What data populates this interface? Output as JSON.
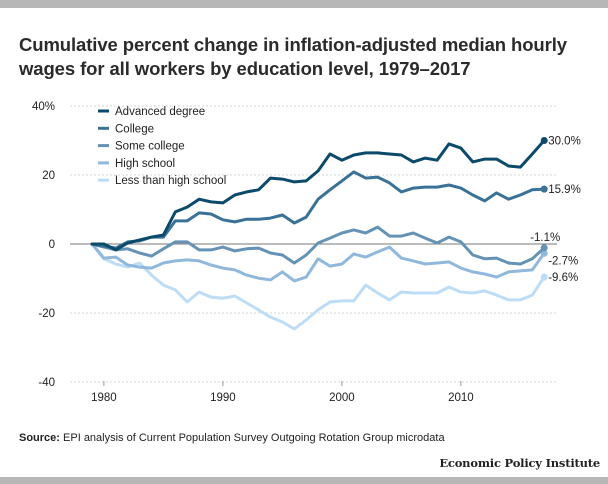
{
  "title": "Cumulative percent change in inflation-adjusted median hourly wages for all workers by education level, 1979–2017",
  "source_label": "Source:",
  "source_text": "EPI analysis of Current Population Survey Outgoing Rotation Group microdata",
  "publisher": "Economic Policy Institute",
  "chart_data": {
    "type": "line",
    "title": "Cumulative percent change in inflation-adjusted median hourly wages for all workers by education level, 1979–2017",
    "xlabel": "",
    "ylabel": "",
    "x": [
      1979,
      1980,
      1981,
      1982,
      1983,
      1984,
      1985,
      1986,
      1987,
      1988,
      1989,
      1990,
      1991,
      1992,
      1993,
      1994,
      1995,
      1996,
      1997,
      1998,
      1999,
      2000,
      2001,
      2002,
      2003,
      2004,
      2005,
      2006,
      2007,
      2008,
      2009,
      2010,
      2011,
      2012,
      2013,
      2014,
      2015,
      2016,
      2017
    ],
    "xlim": [
      1979,
      2017
    ],
    "ylim": [
      -40,
      40
    ],
    "x_ticks": [
      1980,
      1990,
      2000,
      2010
    ],
    "x_tick_labels": [
      "1980",
      "1990",
      "2000",
      "2010"
    ],
    "y_ticks": [
      40,
      20,
      0,
      -20,
      -40
    ],
    "y_tick_labels": [
      "40%",
      "20",
      "0",
      "-20",
      "-40"
    ],
    "grid": "horizontal dotted",
    "legend_position": "top-left",
    "series": [
      {
        "name": "Advanced degree",
        "color": "#0b4a6b",
        "end_label": "30.0%",
        "values": [
          0,
          0,
          -1.7,
          0.3,
          1.2,
          2.0,
          2.6,
          9.3,
          10.7,
          13.0,
          12.2,
          11.9,
          14.2,
          15.1,
          15.7,
          19.1,
          18.8,
          18.0,
          18.3,
          21.2,
          26.1,
          24.3,
          25.8,
          26.4,
          26.4,
          26.1,
          25.8,
          23.8,
          24.9,
          24.3,
          29.0,
          27.8,
          23.8,
          24.6,
          24.6,
          22.6,
          22.3,
          26.1,
          30.0
        ]
      },
      {
        "name": "College",
        "color": "#3a7196",
        "end_label": "15.9%",
        "values": [
          0,
          -0.6,
          -1.2,
          0.6,
          0.9,
          2.0,
          2.0,
          6.7,
          6.7,
          9.0,
          8.7,
          7.0,
          6.4,
          7.2,
          7.2,
          7.5,
          8.4,
          6.1,
          7.8,
          13.0,
          15.7,
          18.3,
          20.9,
          19.1,
          19.4,
          17.7,
          15.1,
          16.2,
          16.5,
          16.5,
          17.1,
          16.2,
          14.2,
          12.5,
          14.8,
          13.0,
          14.2,
          15.7,
          15.9
        ]
      },
      {
        "name": "Some college",
        "color": "#6593b6",
        "end_label": "-1.1%",
        "values": [
          0,
          -0.9,
          -1.7,
          -1.4,
          -2.6,
          -3.5,
          -1.4,
          0.6,
          0.6,
          -1.7,
          -1.7,
          -0.9,
          -2.0,
          -1.4,
          -1.2,
          -2.6,
          -3.2,
          -5.5,
          -3.2,
          0.3,
          1.7,
          3.2,
          4.1,
          3.2,
          4.9,
          2.3,
          2.3,
          3.2,
          1.7,
          0.3,
          2.0,
          0.6,
          -3.2,
          -4.3,
          -4.1,
          -5.5,
          -5.8,
          -4.3,
          -1.1
        ]
      },
      {
        "name": "High school",
        "color": "#90b8dc",
        "end_label": "-2.7%",
        "values": [
          0,
          -4.1,
          -3.8,
          -6.1,
          -6.7,
          -7.0,
          -5.5,
          -4.9,
          -4.6,
          -4.9,
          -6.1,
          -7.0,
          -7.5,
          -9.0,
          -9.9,
          -10.4,
          -8.1,
          -10.7,
          -9.6,
          -4.3,
          -6.4,
          -5.8,
          -2.9,
          -3.8,
          -2.3,
          -0.9,
          -4.1,
          -4.9,
          -5.8,
          -5.5,
          -5.2,
          -7.0,
          -8.1,
          -8.7,
          -9.6,
          -8.1,
          -7.8,
          -7.5,
          -2.7
        ]
      },
      {
        "name": "Less than high school",
        "color": "#bddcf6",
        "end_label": "-9.6%",
        "values": [
          0,
          -4.3,
          -5.8,
          -6.7,
          -5.5,
          -9.0,
          -11.9,
          -13.3,
          -16.8,
          -13.9,
          -15.4,
          -15.7,
          -15.1,
          -17.1,
          -19.1,
          -21.2,
          -22.6,
          -24.6,
          -22.0,
          -19.1,
          -16.8,
          -16.5,
          -16.5,
          -11.9,
          -14.2,
          -16.2,
          -13.9,
          -14.2,
          -14.2,
          -14.2,
          -12.5,
          -13.9,
          -14.2,
          -13.6,
          -14.8,
          -16.2,
          -16.2,
          -14.8,
          -9.6
        ]
      }
    ]
  }
}
